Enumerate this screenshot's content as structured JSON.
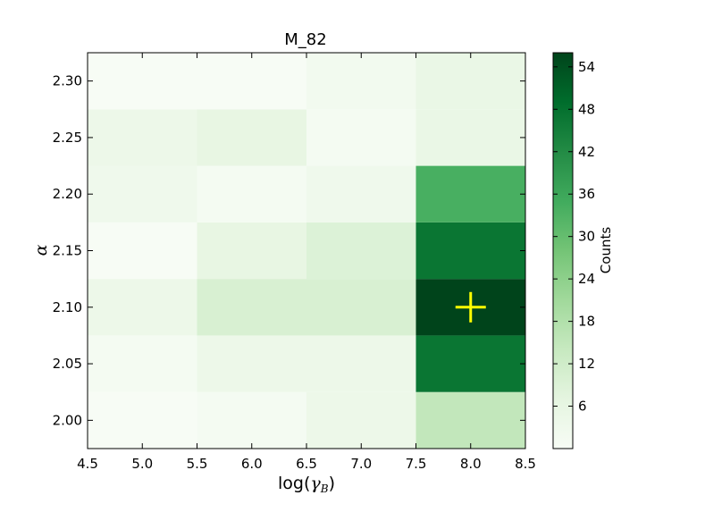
{
  "chart_data": {
    "type": "heatmap",
    "title": "M_82",
    "xlabel": "log(γ_B)",
    "ylabel": "α",
    "x_bin_edges": [
      4.5,
      5.5,
      6.5,
      7.5,
      8.5
    ],
    "y_bin_edges": [
      1.975,
      2.025,
      2.075,
      2.125,
      2.175,
      2.225,
      2.275,
      2.325
    ],
    "xlim": [
      4.5,
      8.5
    ],
    "ylim": [
      1.975,
      2.325
    ],
    "x_ticks": [
      "4.5",
      "5.0",
      "5.5",
      "6.0",
      "6.5",
      "7.0",
      "7.5",
      "8.0",
      "8.5"
    ],
    "y_ticks": [
      "2.00",
      "2.05",
      "2.10",
      "2.15",
      "2.20",
      "2.25",
      "2.30"
    ],
    "counts": [
      [
        0,
        1,
        4,
        15
      ],
      [
        1,
        4,
        4,
        47
      ],
      [
        4,
        10,
        10,
        56
      ],
      [
        0,
        6,
        9,
        47
      ],
      [
        3,
        1,
        3,
        34
      ],
      [
        4,
        6,
        1,
        5
      ],
      [
        0,
        0,
        2,
        5
      ]
    ],
    "colormap": "Greens",
    "colorbar": {
      "label": "Counts",
      "min": 0,
      "max": 56,
      "ticks": [
        "6",
        "12",
        "18",
        "24",
        "30",
        "36",
        "42",
        "48",
        "54"
      ]
    },
    "marker": {
      "type": "cross",
      "x": 8.0,
      "y": 2.1,
      "color": "#ffff00"
    }
  }
}
